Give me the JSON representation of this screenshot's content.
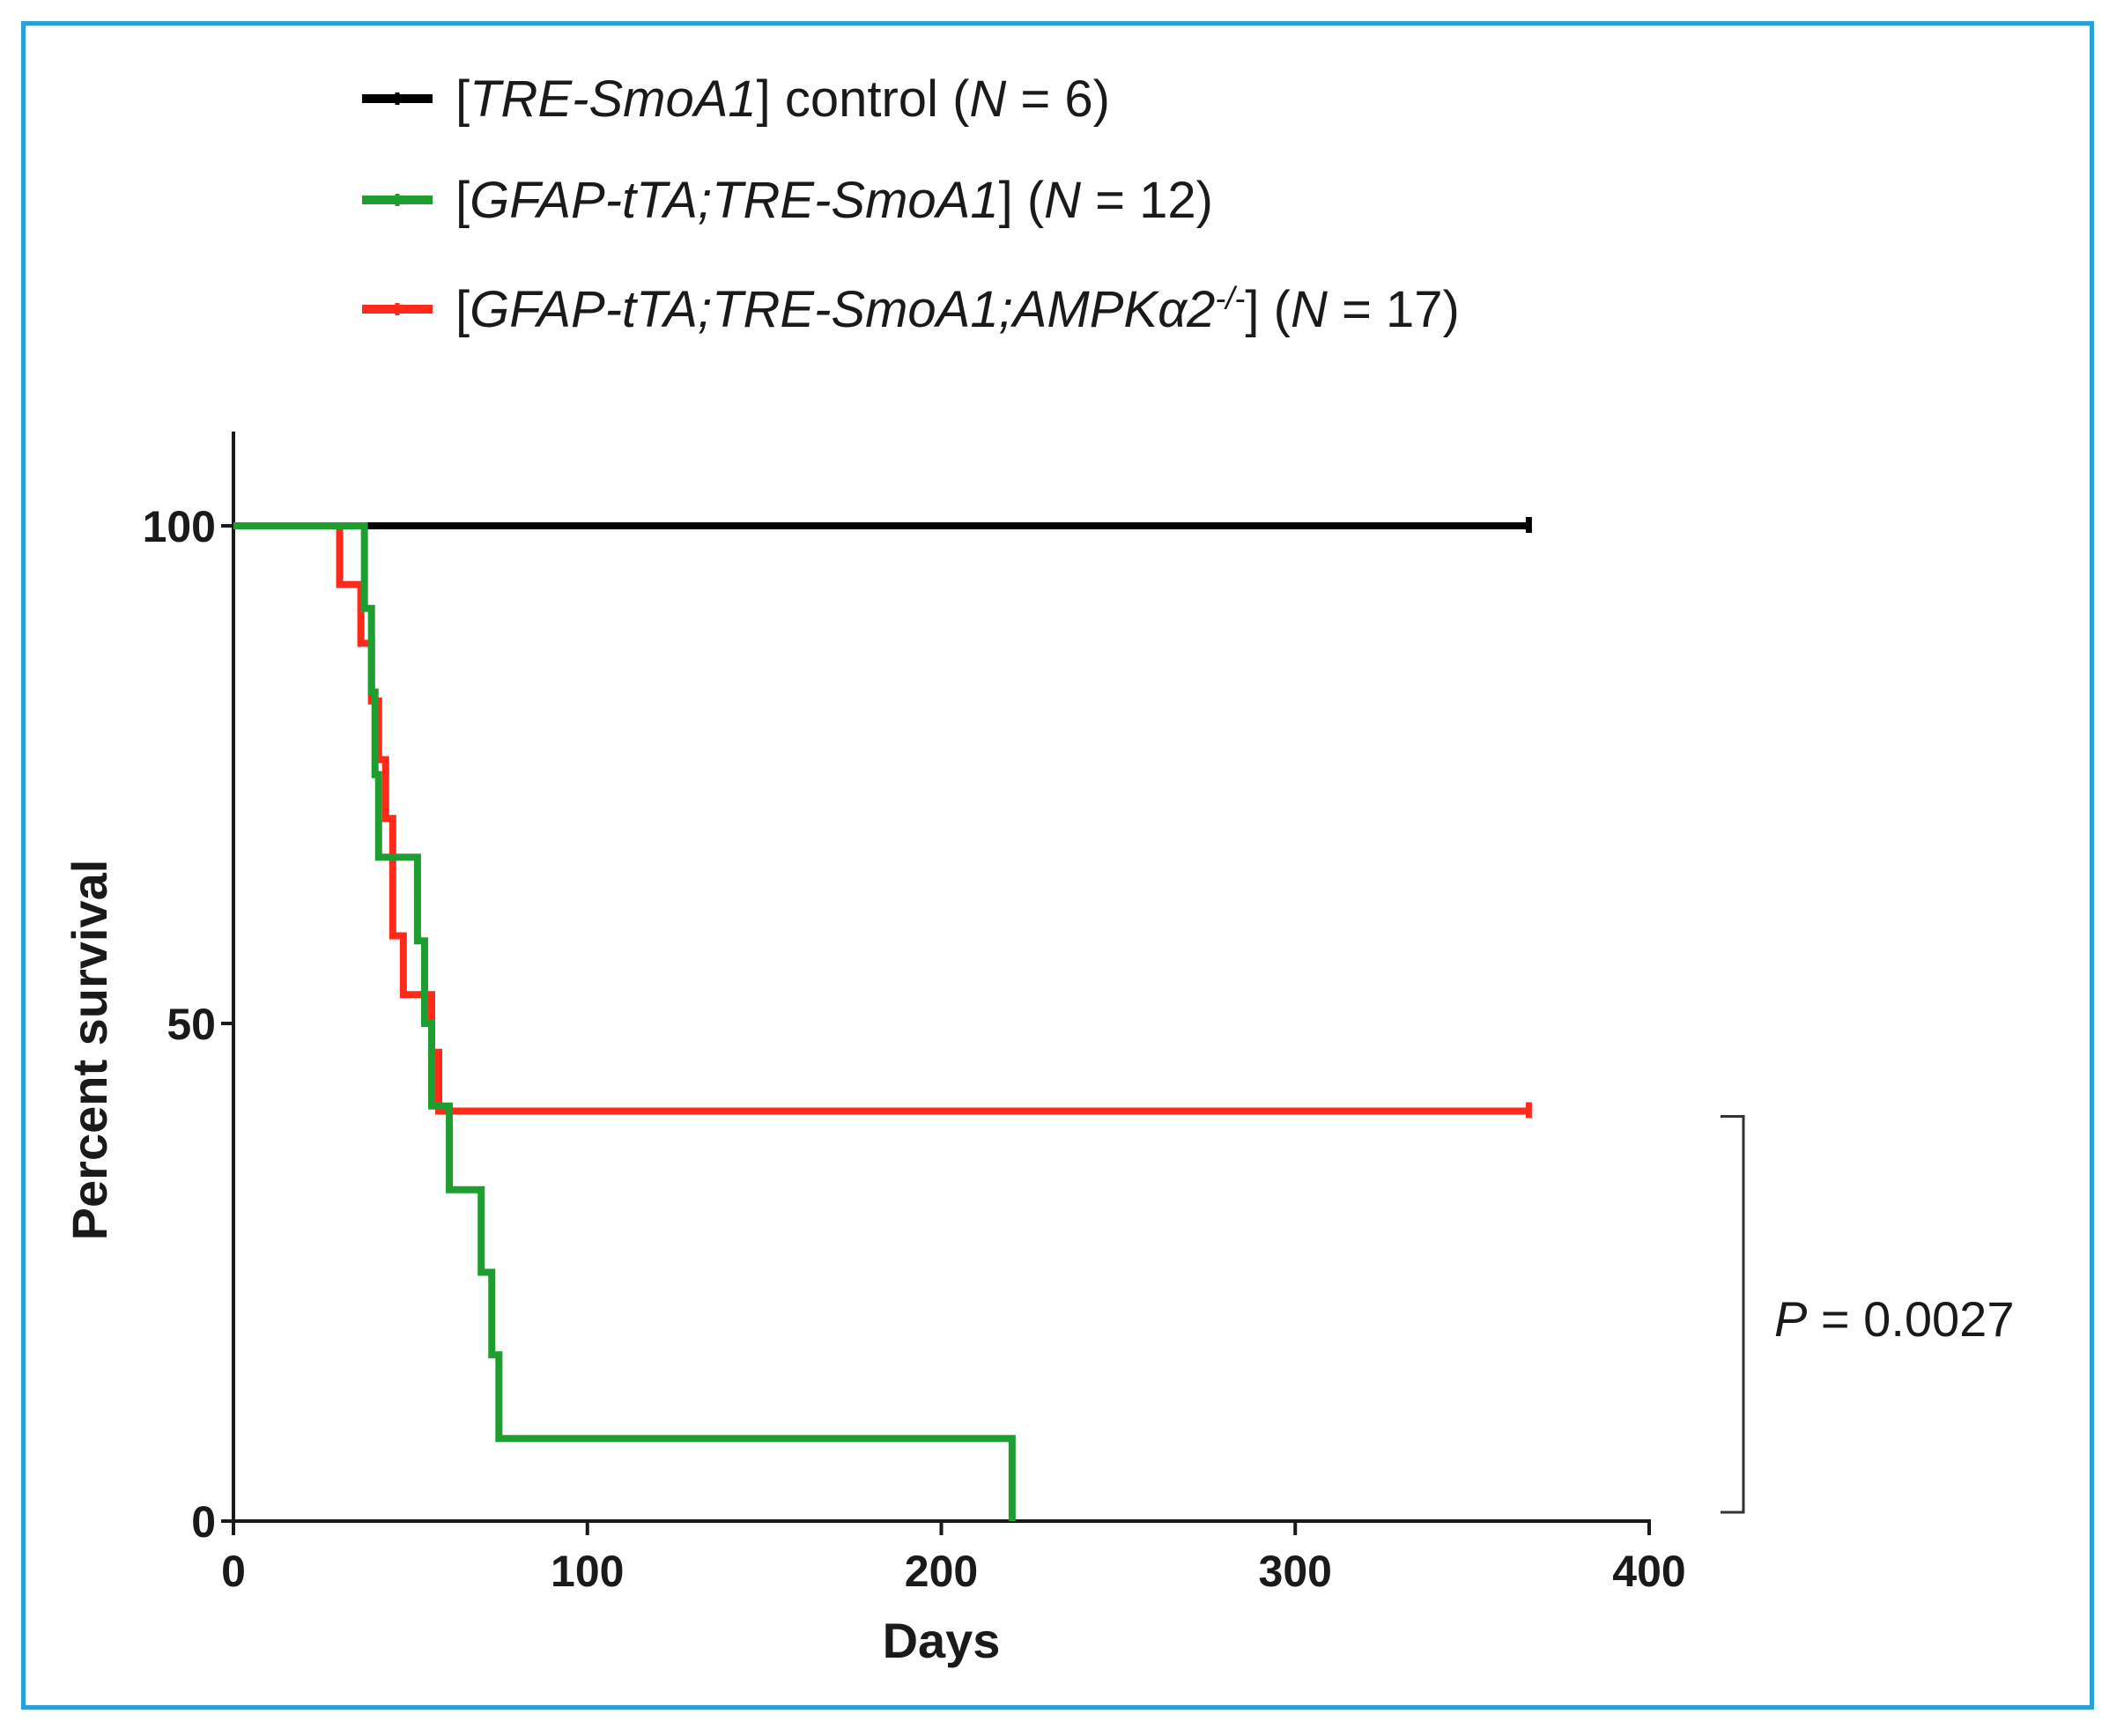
{
  "frame_color": "#2a9fd8",
  "chart_data": {
    "type": "line",
    "subtype": "kaplan-meier-step",
    "title": "",
    "xlabel": "Days",
    "ylabel": "Percent survival",
    "xlim": [
      0,
      400
    ],
    "ylim": [
      0,
      110
    ],
    "xticks": [
      0,
      100,
      200,
      300,
      400
    ],
    "yticks": [
      0,
      50,
      100
    ],
    "xtick_labels": [
      "0",
      "100",
      "200",
      "300",
      "400"
    ],
    "ytick_labels": [
      "0",
      "50",
      "100"
    ],
    "grid": false,
    "legend_position": "top",
    "series": [
      {
        "name": "[TRE-SmoA1] control (N = 6)",
        "legend_parts": [
          {
            "t": "[",
            "i": false
          },
          {
            "t": "TRE-SmoA1",
            "i": true
          },
          {
            "t": "] control (",
            "i": false
          },
          {
            "t": "N",
            "i": true
          },
          {
            "t": " = 6)",
            "i": false
          }
        ],
        "color": "#000000",
        "x": [
          0,
          366
        ],
        "y": [
          100,
          100
        ]
      },
      {
        "name": "[GFAP-tTA;TRE-SmoA1] (N = 12)",
        "legend_parts": [
          {
            "t": "[",
            "i": false
          },
          {
            "t": "GFAP-tTA;TRE-SmoA1",
            "i": true
          },
          {
            "t": "] (",
            "i": false
          },
          {
            "t": "N",
            "i": true
          },
          {
            "t": " = 12)",
            "i": false
          }
        ],
        "color": "#1e9e2e",
        "x": [
          0,
          37,
          39,
          40,
          41,
          52,
          54,
          56,
          61,
          70,
          73,
          75,
          220
        ],
        "y": [
          100,
          91.7,
          83.3,
          75,
          66.7,
          58.3,
          50,
          41.7,
          33.3,
          25,
          16.7,
          8.3,
          0
        ]
      },
      {
        "name": "[GFAP-tTA;TRE-SmoA1;AMPKα2-/-] (N = 17)",
        "legend_parts": [
          {
            "t": "[",
            "i": false
          },
          {
            "t": "GFAP-tTA;TRE-SmoA1;AMPKα2",
            "i": true
          },
          {
            "t": "-/-",
            "i": true,
            "sup": true
          },
          {
            "t": "] (",
            "i": false
          },
          {
            "t": "N",
            "i": true
          },
          {
            "t": " = 17)",
            "i": false
          }
        ],
        "color": "#ff2a1a",
        "x": [
          0,
          30,
          36,
          39,
          41,
          43,
          45,
          48,
          56,
          58,
          366
        ],
        "y": [
          100,
          94.1,
          88.2,
          82.4,
          76.5,
          70.6,
          58.8,
          52.9,
          47.1,
          41.2,
          41.2
        ]
      }
    ],
    "annotations": [
      {
        "type": "bracket",
        "from_y": 41.2,
        "to_y": 0,
        "label": "P = 0.0027",
        "label_parts": [
          {
            "t": "P",
            "i": true
          },
          {
            "t": " = 0.0027",
            "i": false
          }
        ]
      }
    ]
  }
}
